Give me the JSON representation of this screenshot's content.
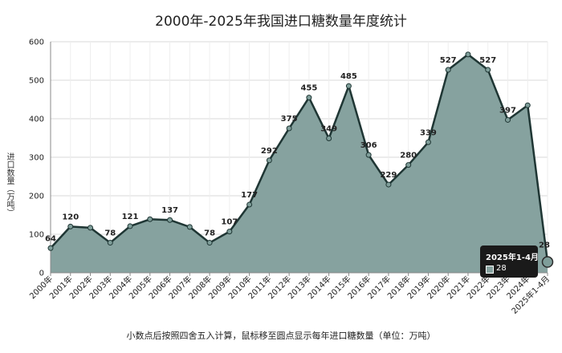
{
  "chart_data": {
    "type": "area",
    "title": "2000年-2025年我国进口糖数量年度统计",
    "ylabel": "进口数量（万吨）",
    "footnote": "小数点后按照四舍五入计算，鼠标移至圆点显示每年进口糖数量（单位：万吨）",
    "ylim": [
      0,
      600
    ],
    "yticks": [
      0,
      100,
      200,
      300,
      400,
      500,
      600
    ],
    "categories": [
      "2000年",
      "2001年",
      "2002年",
      "2003年",
      "2004年",
      "2005年",
      "2006年",
      "2007年",
      "2008年",
      "2009年",
      "2010年",
      "2011年",
      "2012年",
      "2013年",
      "2014年",
      "2015年",
      "2016年",
      "2017年",
      "2018年",
      "2019年",
      "2020年",
      "2021年",
      "2022年",
      "2023年",
      "2024年",
      "2025年1-4月"
    ],
    "values": [
      64,
      120,
      117,
      78,
      121,
      139,
      137,
      119,
      78,
      107,
      177,
      292,
      375,
      455,
      349,
      485,
      306,
      229,
      280,
      339,
      527,
      567,
      527,
      397,
      435,
      28
    ],
    "data_labels": [
      "64",
      "120",
      "",
      "78",
      "121",
      "",
      "137",
      "",
      "78",
      "107",
      "177",
      "292",
      "375",
      "455",
      "349",
      "485",
      "306",
      "229",
      "280",
      "339",
      "527",
      "",
      "527",
      "397",
      "",
      "28"
    ],
    "grid": true,
    "colors": {
      "fill": "#86a29f",
      "line": "#1f3634",
      "point": "#7f9e9a",
      "grid": "#d9d9d9"
    }
  },
  "tooltip": {
    "title": "2025年1-4月",
    "value": "28",
    "swatch_color": "#86a29f"
  }
}
